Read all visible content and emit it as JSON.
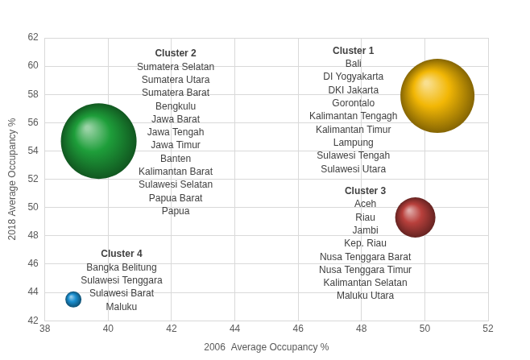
{
  "chart_data": {
    "type": "bubble",
    "x_label": "2006  Average Occupancy %",
    "y_label": "2018 Average Occupancy %",
    "xlim": [
      38,
      52
    ],
    "xticks": [
      38,
      40,
      42,
      44,
      46,
      48,
      50,
      52
    ],
    "ylim": [
      42,
      62
    ],
    "yticks": [
      42,
      44,
      46,
      48,
      50,
      52,
      54,
      56,
      58,
      60,
      62
    ],
    "grid": true,
    "points": [
      {
        "label": "Cluster 1",
        "x": 50.4,
        "y": 57.9,
        "size": 46,
        "color": "#f2b705",
        "members": [
          "Bali",
          "DI Yogyakarta",
          "DKI Jakarta",
          "Gorontalo",
          "Kalimantan Tengagh",
          "Kalimantan Timur",
          "Lampung",
          "Sulawesi Tengah",
          "Sulawesi Utara"
        ]
      },
      {
        "label": "Cluster 2",
        "x": 39.7,
        "y": 54.7,
        "size": 47,
        "color": "#1e9e3a",
        "members": [
          "Sumatera Selatan",
          "Sumatera Utara",
          "Sumatera Barat",
          "Bengkulu",
          "Jawa Barat",
          "Jawa Tengah",
          "Jawa Timur",
          "Banten",
          "Kalimantan Barat",
          "Sulawesi Selatan",
          "Papua Barat",
          "Papua"
        ]
      },
      {
        "label": "Cluster 3",
        "x": 49.7,
        "y": 49.3,
        "size": 25,
        "color": "#b8403c",
        "members": [
          "Aceh",
          "Riau",
          "Jambi",
          "Kep. Riau",
          "Nusa Tenggara Barat",
          "Nusa Tenggara Timur",
          "Kalimantan Selatan",
          "Maluku Utara"
        ]
      },
      {
        "label": "Cluster 4",
        "x": 38.9,
        "y": 43.5,
        "size": 10,
        "color": "#1a8fd0",
        "members": [
          "Bangka Belitung",
          "Sulawesi Tenggara",
          "Sulawesi Barat",
          "Maluku"
        ]
      }
    ]
  }
}
